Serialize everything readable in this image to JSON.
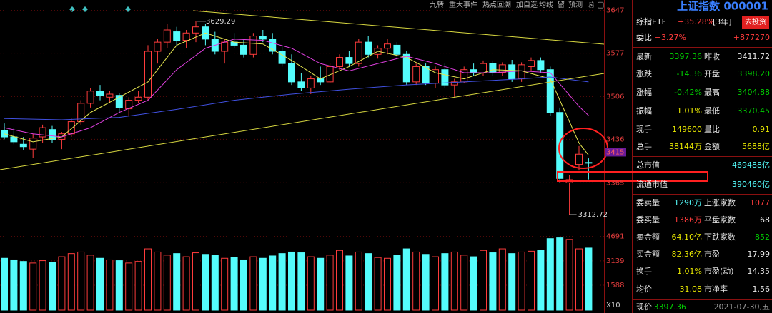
{
  "toolbar": [
    "九转",
    "重大事件",
    "热点回溯",
    "加自选",
    "均线",
    "留",
    "预测"
  ],
  "price_chart": {
    "type": "candlestick",
    "ylim": [
      3300,
      3664
    ],
    "yticks": [
      3647,
      3577,
      3506,
      3436,
      3365
    ],
    "current_label": 3415,
    "max_label": 3629.29,
    "min_label": 3312.72,
    "up_color": "#ff3c3c",
    "down_color": "#54fcfc",
    "candles": [
      [
        3450,
        3462,
        3436,
        3440
      ],
      [
        3440,
        3455,
        3428,
        3432
      ],
      [
        3428,
        3440,
        3418,
        3424
      ],
      [
        3420,
        3445,
        3405,
        3438
      ],
      [
        3440,
        3460,
        3430,
        3455
      ],
      [
        3452,
        3458,
        3430,
        3435
      ],
      [
        3436,
        3448,
        3420,
        3445
      ],
      [
        3445,
        3470,
        3440,
        3465
      ],
      [
        3465,
        3500,
        3460,
        3495
      ],
      [
        3495,
        3520,
        3488,
        3515
      ],
      [
        3515,
        3525,
        3500,
        3508
      ],
      [
        3505,
        3515,
        3495,
        3510
      ],
      [
        3508,
        3512,
        3480,
        3488
      ],
      [
        3486,
        3505,
        3475,
        3500
      ],
      [
        3500,
        3515,
        3495,
        3505
      ],
      [
        3505,
        3590,
        3500,
        3580
      ],
      [
        3580,
        3600,
        3560,
        3595
      ],
      [
        3595,
        3625,
        3585,
        3615
      ],
      [
        3612,
        3620,
        3590,
        3598
      ],
      [
        3598,
        3615,
        3585,
        3610
      ],
      [
        3610,
        3629.29,
        3595,
        3620
      ],
      [
        3620,
        3625,
        3590,
        3600
      ],
      [
        3600,
        3612,
        3575,
        3580
      ],
      [
        3580,
        3600,
        3560,
        3595
      ],
      [
        3595,
        3610,
        3585,
        3590
      ],
      [
        3590,
        3600,
        3570,
        3575
      ],
      [
        3575,
        3610,
        3570,
        3605
      ],
      [
        3605,
        3615,
        3595,
        3600
      ],
      [
        3600,
        3610,
        3575,
        3580
      ],
      [
        3580,
        3590,
        3555,
        3560
      ],
      [
        3560,
        3575,
        3525,
        3530
      ],
      [
        3530,
        3545,
        3515,
        3520
      ],
      [
        3520,
        3540,
        3510,
        3535
      ],
      [
        3535,
        3555,
        3525,
        3530
      ],
      [
        3530,
        3560,
        3528,
        3555
      ],
      [
        3555,
        3575,
        3550,
        3570
      ],
      [
        3570,
        3580,
        3555,
        3560
      ],
      [
        3560,
        3600,
        3555,
        3595
      ],
      [
        3595,
        3605,
        3570,
        3575
      ],
      [
        3575,
        3590,
        3568,
        3585
      ],
      [
        3585,
        3600,
        3575,
        3592
      ],
      [
        3590,
        3595,
        3570,
        3575
      ],
      [
        3575,
        3580,
        3525,
        3530
      ],
      [
        3530,
        3560,
        3525,
        3555
      ],
      [
        3555,
        3560,
        3525,
        3528
      ],
      [
        3528,
        3555,
        3520,
        3550
      ],
      [
        3550,
        3560,
        3520,
        3525
      ],
      [
        3525,
        3535,
        3505,
        3530
      ],
      [
        3530,
        3555,
        3528,
        3550
      ],
      [
        3550,
        3560,
        3540,
        3545
      ],
      [
        3545,
        3565,
        3540,
        3560
      ],
      [
        3560,
        3565,
        3540,
        3545
      ],
      [
        3545,
        3562,
        3540,
        3558
      ],
      [
        3558,
        3566,
        3530,
        3535
      ],
      [
        3535,
        3562,
        3530,
        3558
      ],
      [
        3555,
        3570,
        3548,
        3565
      ],
      [
        3565,
        3570,
        3545,
        3550
      ],
      [
        3550,
        3555,
        3475,
        3480
      ],
      [
        3480,
        3488,
        3365,
        3372
      ],
      [
        3365,
        3378,
        3312.72,
        3370
      ],
      [
        3395,
        3425,
        3385,
        3411.72
      ],
      [
        3398.2,
        3404.88,
        3370.45,
        3397.36
      ]
    ],
    "ma_lines": [
      {
        "color": "#e6e650",
        "x": [
          0,
          3,
          6,
          9,
          12,
          15,
          18,
          21,
          24,
          27,
          30,
          33,
          36,
          39,
          42,
          45,
          48,
          51,
          54,
          57,
          60,
          61
        ],
        "values": [
          3445,
          3432,
          3440,
          3480,
          3505,
          3530,
          3590,
          3610,
          3595,
          3592,
          3565,
          3535,
          3555,
          3580,
          3570,
          3545,
          3535,
          3550,
          3548,
          3535,
          3430,
          3410
        ]
      },
      {
        "color": "#e040e0",
        "x": [
          0,
          3,
          6,
          9,
          12,
          15,
          18,
          21,
          24,
          27,
          30,
          33,
          36,
          39,
          42,
          45,
          48,
          51,
          54,
          57,
          60,
          61
        ],
        "values": [
          3455,
          3445,
          3440,
          3455,
          3480,
          3500,
          3550,
          3585,
          3600,
          3598,
          3585,
          3560,
          3548,
          3560,
          3572,
          3560,
          3545,
          3545,
          3548,
          3545,
          3490,
          3475
        ]
      },
      {
        "color": "#4050e0",
        "x": [
          0,
          6,
          12,
          18,
          24,
          30,
          36,
          42,
          48,
          54,
          57,
          61
        ],
        "values": [
          3470,
          3468,
          3472,
          3485,
          3500,
          3510,
          3518,
          3525,
          3530,
          3535,
          3538,
          3530
        ]
      }
    ]
  },
  "volume_chart": {
    "type": "bar",
    "ylim": [
      0,
      5218
    ],
    "yticks": [
      4691,
      3139,
      1588
    ],
    "unit_label": "X10",
    "values": [
      3300,
      3200,
      3100,
      3000,
      3150,
      3050,
      3400,
      3600,
      3700,
      3500,
      3300,
      3200,
      3150,
      3000,
      3100,
      3900,
      3700,
      3500,
      3600,
      3400,
      3650,
      3550,
      3500,
      3300,
      3350,
      3200,
      3400,
      3300,
      3450,
      3600,
      3700,
      3650,
      3400,
      3300,
      3500,
      3800,
      3450,
      3700,
      3600,
      3350,
      3300,
      3500,
      3900,
      3700,
      3550,
      3400,
      3600,
      3700,
      3500,
      3400,
      3800,
      3650,
      3900,
      3600,
      3700,
      3750,
      3800,
      4550,
      4600,
      4500,
      3900,
      3950
    ]
  },
  "quote_panel": {
    "title": "上证指数 000001",
    "etf": {
      "label": "综指ETF",
      "value": "+35.28%",
      "period": "[3年]",
      "button": "去投资"
    },
    "rows": [
      [
        {
          "text": "委比",
          "color": "#e6e6e6"
        },
        {
          "text": "+3.27%",
          "color": "#ff3c3c"
        },
        {
          "text": "+877270",
          "color": "#ff3c3c"
        }
      ],
      [
        {
          "text": "最新",
          "color": "#e6e6e6"
        },
        {
          "text": "3397.36",
          "color": "#00d000"
        },
        {
          "text": "昨收",
          "color": "#e6e6e6"
        },
        {
          "text": "3411.72",
          "color": "#e6e6e6"
        }
      ],
      [
        {
          "text": "涨跌",
          "color": "#e6e6e6"
        },
        {
          "text": "-14.36",
          "color": "#00d000"
        },
        {
          "text": "开盘",
          "color": "#e6e6e6"
        },
        {
          "text": "3398.20",
          "color": "#00d000"
        }
      ],
      [
        {
          "text": "涨幅",
          "color": "#e6e6e6"
        },
        {
          "text": "-0.42%",
          "color": "#00d000"
        },
        {
          "text": "最高",
          "color": "#e6e6e6"
        },
        {
          "text": "3404.88",
          "color": "#00d000"
        }
      ],
      [
        {
          "text": "振幅",
          "color": "#e6e6e6"
        },
        {
          "text": "1.01%",
          "color": "#e6e600"
        },
        {
          "text": "最低",
          "color": "#e6e6e6"
        },
        {
          "text": "3370.45",
          "color": "#00d000"
        }
      ],
      [
        {
          "text": "现手",
          "color": "#e6e6e6"
        },
        {
          "text": "149600",
          "color": "#e6e600"
        },
        {
          "text": "量比",
          "color": "#e6e6e6"
        },
        {
          "text": "0.91",
          "color": "#e6e600"
        }
      ],
      [
        {
          "text": "总手",
          "color": "#e6e6e6"
        },
        {
          "text": "38144万",
          "color": "#e6e600"
        },
        {
          "text": "金额",
          "color": "#e6e6e6"
        },
        {
          "text": "5688亿",
          "color": "#e6e600"
        }
      ],
      [
        {
          "text": "总市值",
          "color": "#e6e6e6"
        },
        {
          "text": "469488亿",
          "color": "#54fcfc"
        }
      ],
      [
        {
          "text": "流通市值",
          "color": "#e6e6e6"
        },
        {
          "text": "390460亿",
          "color": "#54fcfc"
        }
      ],
      [
        {
          "text": "委卖量",
          "color": "#e6e6e6"
        },
        {
          "text": "1290万",
          "color": "#54fcfc"
        },
        {
          "text": "上涨家数",
          "color": "#e6e6e6"
        },
        {
          "text": "1077",
          "color": "#ff3c3c"
        }
      ],
      [
        {
          "text": "委买量",
          "color": "#e6e6e6"
        },
        {
          "text": "1386万",
          "color": "#ff3c3c"
        },
        {
          "text": "平盘家数",
          "color": "#e6e6e6"
        },
        {
          "text": "68",
          "color": "#e6e6e6"
        }
      ],
      [
        {
          "text": "卖金额",
          "color": "#e6e6e6"
        },
        {
          "text": "64.10亿",
          "color": "#e6e600"
        },
        {
          "text": "下跌家数",
          "color": "#e6e6e6"
        },
        {
          "text": "852",
          "color": "#00d000"
        }
      ],
      [
        {
          "text": "买金额",
          "color": "#e6e6e6"
        },
        {
          "text": "82.36亿",
          "color": "#e6e600"
        },
        {
          "text": "市盈",
          "color": "#e6e6e6"
        },
        {
          "text": "17.99",
          "color": "#e6e6e6"
        }
      ],
      [
        {
          "text": "换手",
          "color": "#e6e6e6"
        },
        {
          "text": "1.01%",
          "color": "#e6e600"
        },
        {
          "text": "市盈(动)",
          "color": "#e6e6e6"
        },
        {
          "text": "14.35",
          "color": "#e6e6e6"
        }
      ],
      [
        {
          "text": "均价",
          "color": "#e6e6e6"
        },
        {
          "text": "31.08",
          "color": "#e6e600"
        },
        {
          "text": "市净率",
          "color": "#e6e6e6"
        },
        {
          "text": "1.56",
          "color": "#e6e6e6"
        }
      ],
      [
        {
          "text": "现价",
          "color": "#e6e6e6"
        },
        {
          "text": "3397.36",
          "color": "#00d000"
        },
        {
          "text": "2021-07-30,五",
          "color": "#9a9a9a"
        }
      ]
    ]
  }
}
